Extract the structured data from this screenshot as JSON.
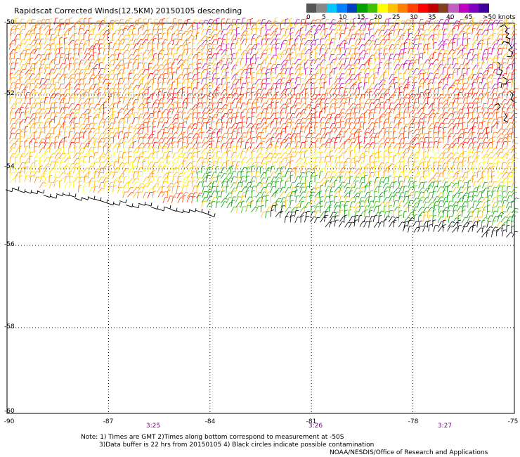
{
  "title": "Rapidscat Corrected Winds(12.5KM) 20150105 descending",
  "legend": {
    "labels": [
      "0",
      "5",
      "10",
      "15",
      "20",
      "25",
      "30",
      "35",
      "40",
      "45",
      ">50 knots"
    ],
    "colors": [
      "#555555",
      "#888888",
      "#00c8ff",
      "#0080ff",
      "#0040c0",
      "#00a000",
      "#40c000",
      "#ffff00",
      "#ffc000",
      "#ff8000",
      "#ff4000",
      "#ff0000",
      "#c00000",
      "#804020",
      "#c060c0",
      "#c000c0",
      "#8000c0",
      "#4000a0"
    ]
  },
  "lat_labels": [
    "-50",
    "-52",
    "-54",
    "-56",
    "-58",
    "-60"
  ],
  "lon_labels": [
    "-90",
    "-87",
    "-84",
    "-81",
    "-78",
    "-75"
  ],
  "time_labels": [
    "3:25",
    "3:26",
    "3:27"
  ],
  "notes": {
    "line1": "Note: 1) Times are GMT 2)Times along bottom correspond to measurement at -50S",
    "line2": "3)Data buffer is 22 hrs from 20150105 4) Black circles indicate possible contamination",
    "credit": "NOAA/NESDIS/Office of Research and Applications"
  },
  "map": {
    "lon_range": [
      -90,
      -75
    ],
    "lat_range": [
      -60,
      -50
    ]
  }
}
